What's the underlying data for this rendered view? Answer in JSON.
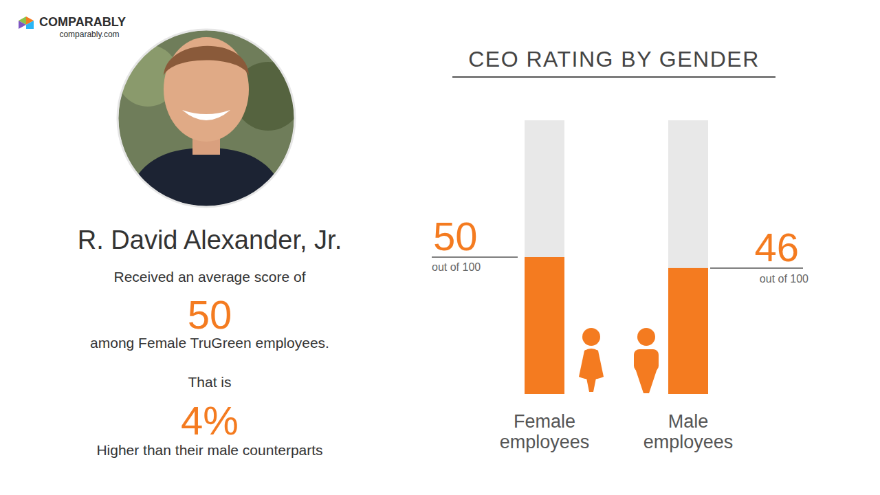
{
  "header": {
    "brand": "COMPARABLY",
    "site": "comparably.com"
  },
  "profile": {
    "name": "R. David Alexander, Jr.",
    "lines": [
      "Received an average score of",
      "among Female TruGreen employees.",
      "That is",
      "Higher than their male counterparts"
    ],
    "difference": "4%"
  },
  "chart_data": {
    "type": "bar",
    "title": "CEO RATING BY GENDER",
    "categories": [
      "Female employees",
      "Male employees"
    ],
    "values": [
      50,
      46
    ],
    "color": "#f47b20",
    "ylim": [
      0,
      100
    ],
    "tick_labels": false,
    "grid": false,
    "data_labels": true,
    "value_note": "out of 100"
  }
}
